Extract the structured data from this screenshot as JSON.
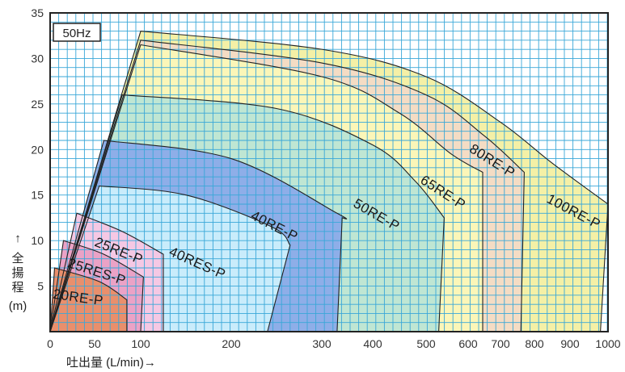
{
  "chart_data": {
    "type": "area",
    "frequency_badge": "50Hz",
    "xlabel": "吐出量 (L/min)→",
    "ylabel_arrow": "↑",
    "ylabel_chars": [
      "全",
      "揚",
      "程"
    ],
    "ylabel_unit": "(m)",
    "xlim": [
      0,
      1000
    ],
    "ylim": [
      0,
      35
    ],
    "x_ticks": [
      0,
      50,
      100,
      200,
      300,
      400,
      500,
      600,
      700,
      800,
      900,
      1000
    ],
    "y_ticks": [
      5,
      10,
      15,
      20,
      25,
      30,
      35
    ],
    "grid": true,
    "colors": {
      "grid": "#39a7d8",
      "frame": "#222222",
      "100RE-P": "#f4f0a6",
      "80RE-P": "#f4dcc4",
      "65RE-P": "#fbf6b8",
      "50RE-P": "#bfe6d3",
      "40RE-P": "#8eaee8",
      "40RES-P": "#c9ecfb",
      "25RE-P": "#f5c8e4",
      "25RES-P": "#eba2c6",
      "20RE-P": "#e98f6c"
    },
    "series": [
      {
        "name": "100RE-P",
        "outline": [
          [
            0,
            0
          ],
          [
            100,
            33
          ],
          [
            300,
            31
          ],
          [
            500,
            28
          ],
          [
            700,
            23
          ],
          [
            850,
            18.5
          ],
          [
            1000,
            14
          ],
          [
            980,
            0
          ]
        ]
      },
      {
        "name": "80RE-P",
        "outline": [
          [
            0,
            0
          ],
          [
            100,
            32
          ],
          [
            300,
            29.5
          ],
          [
            500,
            26
          ],
          [
            650,
            21.5
          ],
          [
            770,
            17.5
          ],
          [
            760,
            0
          ]
        ]
      },
      {
        "name": "65RE-P",
        "outline": [
          [
            0,
            0
          ],
          [
            100,
            31.5
          ],
          [
            300,
            28
          ],
          [
            450,
            24
          ],
          [
            560,
            19.5
          ],
          [
            645,
            17.5
          ],
          [
            645,
            0
          ]
        ]
      },
      {
        "name": "50RE-P",
        "outline": [
          [
            0,
            0
          ],
          [
            80,
            26
          ],
          [
            250,
            24.5
          ],
          [
            400,
            20.5
          ],
          [
            480,
            16.5
          ],
          [
            543,
            12.5
          ],
          [
            530,
            0
          ]
        ]
      },
      {
        "name": "40RE-P",
        "outline": [
          [
            0,
            0
          ],
          [
            60,
            21
          ],
          [
            200,
            19
          ],
          [
            330,
            13
          ],
          [
            340,
            12.5
          ],
          [
            330,
            0
          ]
        ]
      },
      {
        "name": "40RES-P",
        "outline": [
          [
            0,
            0
          ],
          [
            55,
            16
          ],
          [
            150,
            15
          ],
          [
            245,
            11.5
          ],
          [
            265,
            9.5
          ],
          [
            240,
            0
          ]
        ]
      },
      {
        "name": "25RE-P",
        "outline": [
          [
            0,
            0
          ],
          [
            30,
            13
          ],
          [
            80,
            11
          ],
          [
            125,
            8.5
          ],
          [
            125,
            0
          ]
        ]
      },
      {
        "name": "25RES-P",
        "outline": [
          [
            0,
            0
          ],
          [
            15,
            10
          ],
          [
            60,
            8.5
          ],
          [
            103,
            6
          ],
          [
            100,
            0
          ]
        ]
      },
      {
        "name": "20RE-P",
        "outline": [
          [
            0,
            0
          ],
          [
            5,
            7
          ],
          [
            55,
            5.5
          ],
          [
            85,
            3.5
          ],
          [
            85,
            0
          ]
        ]
      }
    ]
  }
}
